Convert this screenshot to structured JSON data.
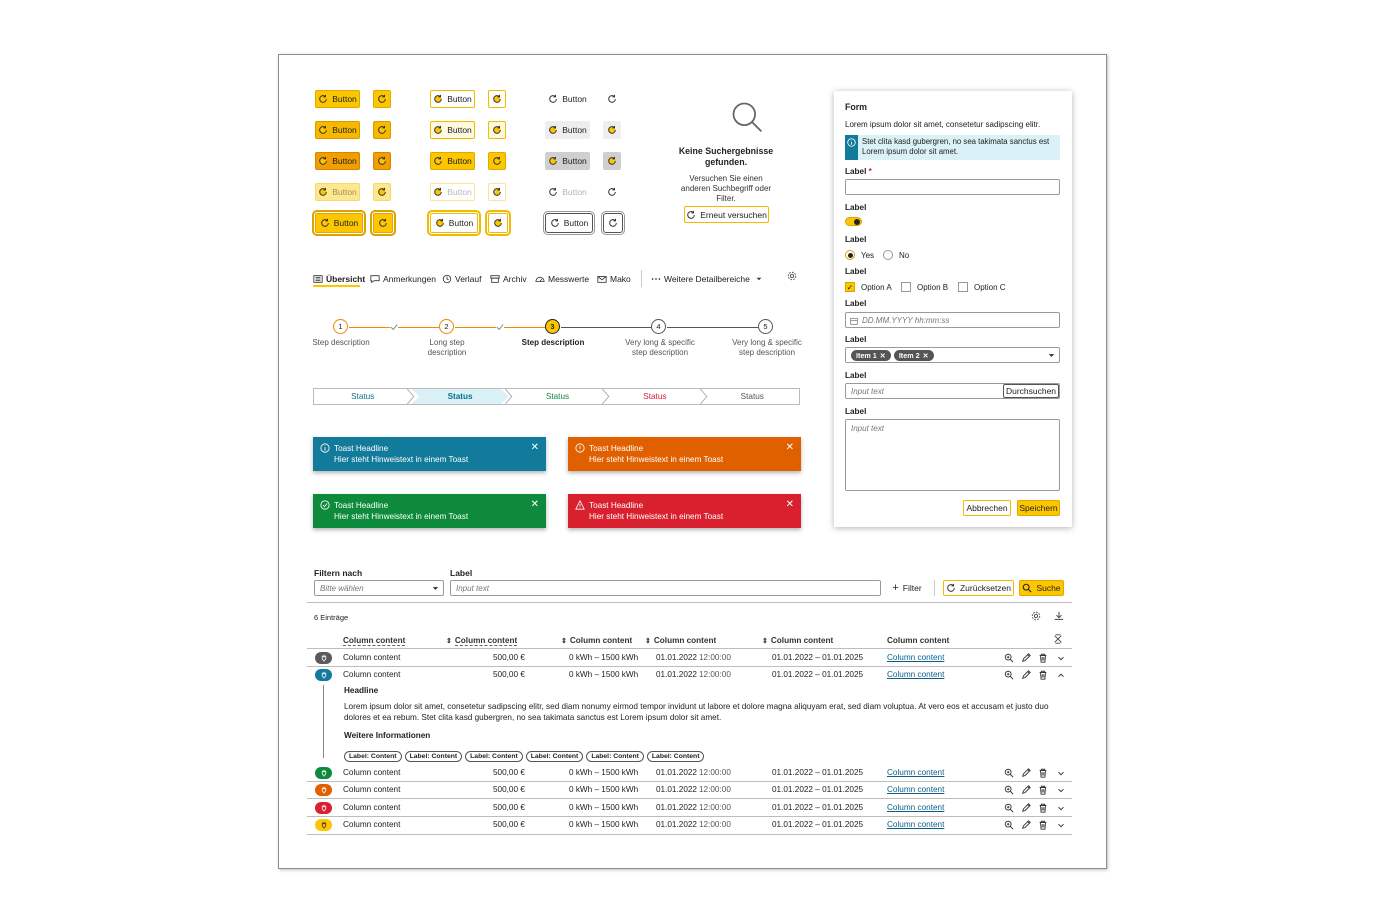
{
  "buttons": {
    "label": "Button"
  },
  "no_results": {
    "title": "Keine Suchergebnisse gefunden.",
    "text": "Versuchen Sie einen anderen Suchbegriff oder Filter.",
    "retry": "Erneut versuchen"
  },
  "tabs": [
    {
      "label": "Übersicht",
      "icon": "list-icon",
      "active": true
    },
    {
      "label": "Anmerkungen",
      "icon": "comment-icon"
    },
    {
      "label": "Verlauf",
      "icon": "history-icon"
    },
    {
      "label": "Archiv",
      "icon": "archive-icon"
    },
    {
      "label": "Messwerte",
      "icon": "gauge-icon"
    },
    {
      "label": "Mako",
      "icon": "mail-icon"
    },
    {
      "label": "Weitere Detailbereiche",
      "icon": "more-icon"
    }
  ],
  "stepper": [
    {
      "num": "1",
      "label": "Step description"
    },
    {
      "num": "2",
      "label": "Long step description"
    },
    {
      "num": "3",
      "label": "Step description"
    },
    {
      "num": "4",
      "label": "Very long & specific step description"
    },
    {
      "num": "5",
      "label": "Very long & specific step description"
    }
  ],
  "status_track": [
    {
      "label": "Status",
      "color": "#0a6f8c"
    },
    {
      "label": "Status",
      "color": "#0a6f8c"
    },
    {
      "label": "Status",
      "color": "#0b8a3a"
    },
    {
      "label": "Status",
      "color": "#d6202f"
    },
    {
      "label": "Status",
      "color": "#555555"
    }
  ],
  "toasts": [
    {
      "headline": "Toast Headline",
      "text": "Hier steht Hinweistext in einem Toast",
      "color": "#127a9a",
      "icon": "info-icon"
    },
    {
      "headline": "Toast Headline",
      "text": "Hier steht Hinweistext in einem Toast",
      "color": "#e06000",
      "icon": "warning-circle-icon"
    },
    {
      "headline": "Toast Headline",
      "text": "Hier steht Hinweistext in einem Toast",
      "color": "#0e8a3c",
      "icon": "check-circle-icon"
    },
    {
      "headline": "Toast Headline",
      "text": "Hier steht Hinweistext in einem Toast",
      "color": "#d9202f",
      "icon": "alert-triangle-icon"
    }
  ],
  "filter": {
    "filter_label": "Filtern nach",
    "select_placeholder": "Bitte wählen",
    "input_label": "Label",
    "input_placeholder": "Input text",
    "filter_btn": "Filter",
    "reset_btn": "Zurücksetzen",
    "search_btn": "Suche"
  },
  "table": {
    "count": "6 Einträge",
    "headers": [
      "Column content",
      "Column content",
      "Column content",
      "Column content",
      "Column content",
      "Column content"
    ],
    "rows": [
      {
        "c1": "Column content",
        "c2": "500,00 €",
        "c3": "0 kWh – 1500 kWh",
        "d": "01.01.2022",
        "t": "12:00:00",
        "range": "01.01.2022 – 01.01.2025",
        "link": "Column content",
        "color": "#5a5a5a"
      },
      {
        "c1": "Column content",
        "c2": "500,00 €",
        "c3": "0 kWh – 1500 kWh",
        "d": "01.01.2022",
        "t": "12:00:00",
        "range": "01.01.2022 – 01.01.2025",
        "link": "Column content",
        "color": "#127a9a"
      },
      {
        "c1": "Column content",
        "c2": "500,00 €",
        "c3": "0 kWh – 1500 kWh",
        "d": "01.01.2022",
        "t": "12:00:00",
        "range": "01.01.2022 – 01.01.2025",
        "link": "Column content",
        "color": "#0e8a3c"
      },
      {
        "c1": "Column content",
        "c2": "500,00 €",
        "c3": "0 kWh – 1500 kWh",
        "d": "01.01.2022",
        "t": "12:00:00",
        "range": "01.01.2022 – 01.01.2025",
        "link": "Column content",
        "color": "#e06000"
      },
      {
        "c1": "Column content",
        "c2": "500,00 €",
        "c3": "0 kWh – 1500 kWh",
        "d": "01.01.2022",
        "t": "12:00:00",
        "range": "01.01.2022 – 01.01.2025",
        "link": "Column content",
        "color": "#d9202f"
      },
      {
        "c1": "Column content",
        "c2": "500,00 €",
        "c3": "0 kWh – 1500 kWh",
        "d": "01.01.2022",
        "t": "12:00:00",
        "range": "01.01.2022 – 01.01.2025",
        "link": "Column content",
        "color": "#fcc600"
      }
    ],
    "detail": {
      "headline": "Headline",
      "text": "Lorem ipsum dolor sit amet, consetetur sadipscing elitr, sed diam nonumy eirmod tempor invidunt ut labore et dolore magna aliquyam erat, sed diam voluptua. At vero eos et accusam et justo duo dolores et ea rebum. Stet clita kasd gubergren, no sea takimata sanctus est Lorem ipsum dolor sit amet.",
      "more_title": "Weitere Informationen",
      "chips": [
        "Label: Content",
        "Label: Content",
        "Label: Content",
        "Label: Content",
        "Label: Content",
        "Label: Content"
      ]
    }
  },
  "form": {
    "title": "Form",
    "intro": "Lorem ipsum dolor sit amet, consetetur sadipscing elitr.",
    "info": "Stet clita kasd gubergren, no sea takimata sanctus est Lorem ipsum dolor sit amet.",
    "label": "Label",
    "required_mark": "*",
    "radio_yes": "Yes",
    "radio_no": "No",
    "options": [
      "Option A",
      "Option B",
      "Option C"
    ],
    "date_placeholder": "DD.MM.YYYY hh:mm:ss",
    "tags": [
      "Item 1",
      "Item 2"
    ],
    "input_placeholder": "Input text",
    "browse": "Durchsuchen",
    "textarea_placeholder": "Input text",
    "cancel": "Abbrechen",
    "save": "Speichern"
  }
}
